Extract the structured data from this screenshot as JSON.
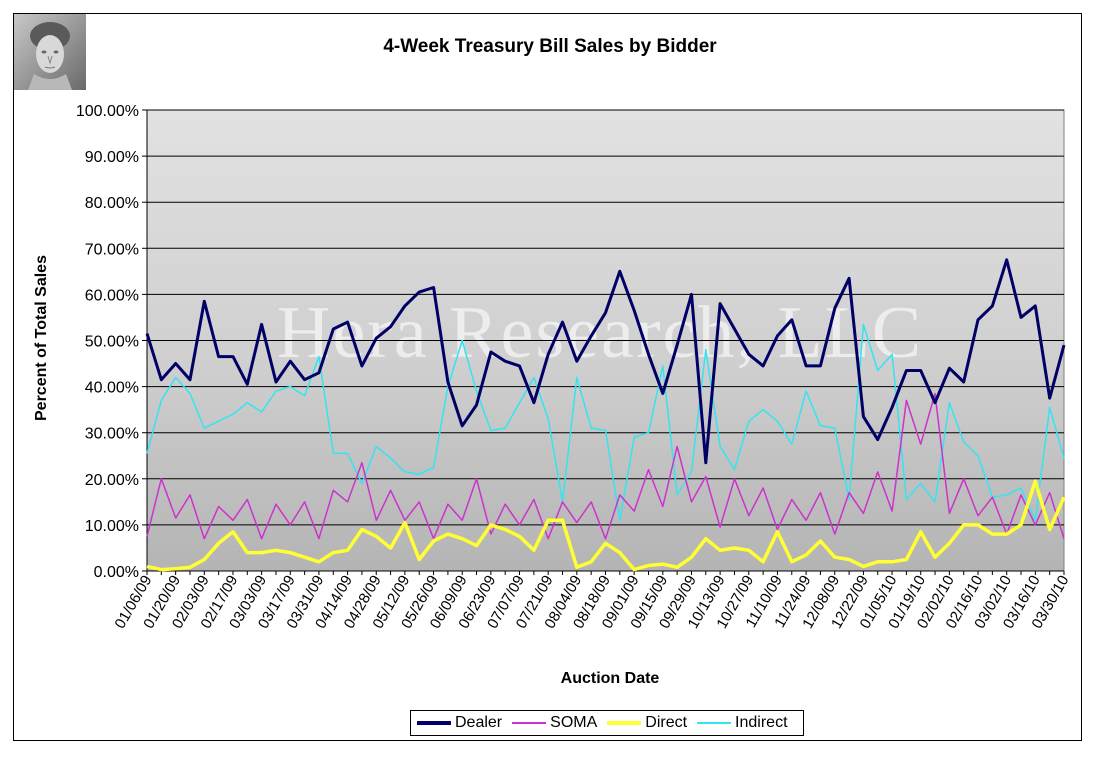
{
  "chart_data": {
    "type": "line",
    "title": "4-Week Treasury Bill Sales by Bidder",
    "xlabel": "Auction Date",
    "ylabel": "Percent of Total Sales",
    "ylim": [
      0,
      100
    ],
    "yticks": [
      "0.00%",
      "10.00%",
      "20.00%",
      "30.00%",
      "40.00%",
      "50.00%",
      "60.00%",
      "70.00%",
      "80.00%",
      "90.00%",
      "100.00%"
    ],
    "x_tick_labels": [
      "01/06/09",
      "01/20/09",
      "02/03/09",
      "02/17/09",
      "03/03/09",
      "03/17/09",
      "03/31/09",
      "04/14/09",
      "04/28/09",
      "05/12/09",
      "05/26/09",
      "06/09/09",
      "06/23/09",
      "07/07/09",
      "07/21/09",
      "08/04/09",
      "08/18/09",
      "09/01/09",
      "09/15/09",
      "09/29/09",
      "10/13/09",
      "10/27/09",
      "11/10/09",
      "11/24/09",
      "12/08/09",
      "12/22/09",
      "01/05/10",
      "01/19/10",
      "02/02/10",
      "02/16/10",
      "03/02/10",
      "03/16/10",
      "03/30/10"
    ],
    "grid": true,
    "legend_position": "bottom",
    "watermark": "Hera Research, LLC",
    "series": [
      {
        "name": "Dealer",
        "color": "#000066",
        "values": [
          51.5,
          41.5,
          45,
          41.5,
          58.5,
          46.5,
          46.5,
          40.5,
          53.5,
          41,
          45.5,
          41.5,
          43,
          52.5,
          54,
          44.5,
          50.5,
          53,
          57.5,
          60.5,
          61.5,
          41,
          31.5,
          36,
          47.5,
          45.5,
          44.5,
          36.5,
          47,
          54,
          45.5,
          51,
          56,
          65,
          56.5,
          47,
          38.5,
          49,
          60,
          23.5,
          58,
          52.5,
          47,
          44.5,
          51,
          54.5,
          44.5,
          44.5,
          57,
          63.5,
          33.5,
          28.5,
          35.5,
          43.5,
          43.5,
          36.5,
          44,
          41,
          54.5,
          57.5,
          67.5,
          55,
          57.5,
          37.5,
          49
        ]
      },
      {
        "name": "SOMA",
        "color": "#cc33cc",
        "values": [
          7.5,
          20,
          11.5,
          16.5,
          7,
          14,
          11,
          15.5,
          7,
          14.5,
          10,
          15,
          7,
          17.5,
          15,
          23.5,
          11,
          17.5,
          11,
          15,
          7,
          14.5,
          11,
          20,
          8,
          14.5,
          10,
          15.5,
          7,
          15,
          10.5,
          15,
          7,
          16.5,
          13,
          22,
          14,
          27,
          15,
          20.5,
          9.5,
          20,
          12,
          18,
          9,
          15.5,
          11,
          17,
          8,
          17,
          12.5,
          21.5,
          13,
          37,
          27.5,
          38.5,
          12.5,
          20,
          12,
          16,
          8,
          16.5,
          10,
          17,
          7
        ]
      },
      {
        "name": "Direct",
        "color": "#ffff33",
        "values": [
          1,
          0.3,
          0.5,
          0.8,
          2.5,
          6,
          8.5,
          4,
          4,
          4.5,
          4,
          3,
          2,
          4,
          4.5,
          9,
          7.5,
          5,
          10.5,
          2.5,
          6.5,
          8,
          7,
          5.5,
          10,
          9,
          7.5,
          4.5,
          11,
          11,
          0.8,
          2,
          6,
          4,
          0.3,
          1.2,
          1.5,
          0.8,
          3,
          7,
          4.5,
          5,
          4.5,
          2,
          8.5,
          2,
          3.5,
          6.5,
          3,
          2.5,
          1,
          2,
          2,
          2.5,
          8.5,
          3,
          6,
          10,
          10,
          8,
          8,
          10,
          19.5,
          9,
          16
        ]
      },
      {
        "name": "Indirect",
        "color": "#33e5f0",
        "values": [
          25.5,
          37,
          42,
          38.5,
          31,
          32.5,
          34,
          36.5,
          34.5,
          39,
          40,
          38,
          46.5,
          25.5,
          25.5,
          19,
          27,
          24.5,
          21.5,
          21,
          22.5,
          40,
          50,
          39,
          30.5,
          31,
          36.5,
          42,
          33,
          15,
          42,
          31,
          30.5,
          11,
          29,
          30,
          44.5,
          16.5,
          21.5,
          48,
          27,
          22,
          32.5,
          35,
          32.5,
          27.5,
          39,
          31.5,
          31,
          15.5,
          53.5,
          43.5,
          47,
          15.5,
          19,
          15,
          36.5,
          28,
          25,
          16,
          16.5,
          18,
          11,
          35.5,
          24.5
        ]
      }
    ]
  }
}
